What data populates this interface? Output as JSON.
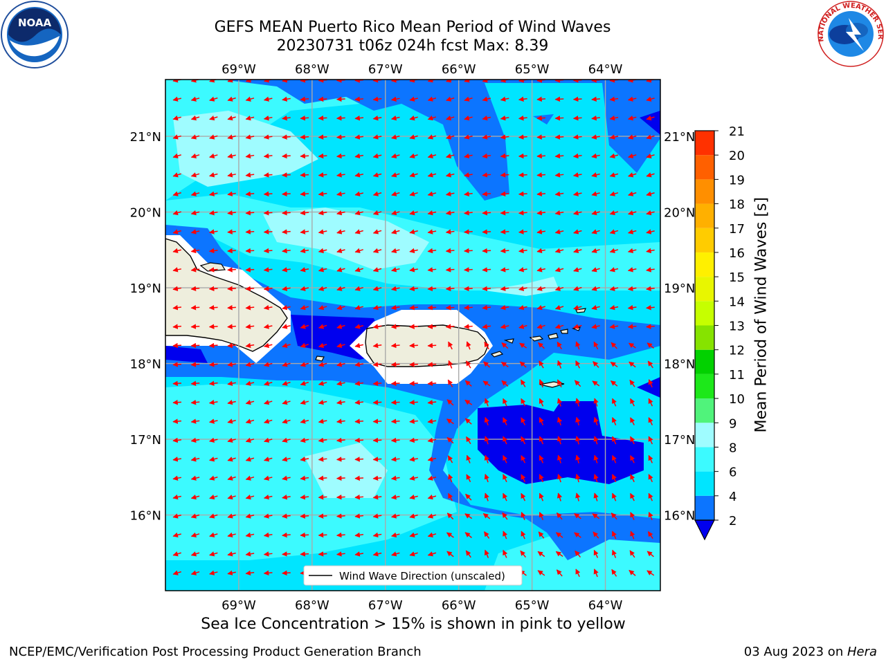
{
  "title": "GEFS MEAN Puerto Rico Mean Period of Wind Waves",
  "subtitle": "20230731 t06z 024h fcst   Max: 8.39",
  "map": {
    "lon_ticks": [
      "69°W",
      "68°W",
      "67°W",
      "66°W",
      "65°W",
      "64°W"
    ],
    "lat_ticks": [
      "21°N",
      "20°N",
      "19°N",
      "18°N",
      "17°N",
      "16°N"
    ],
    "legend_label": "Wind Wave Direction (unscaled)",
    "arrow_color": "#ff0000",
    "land_color": "#eeeedd",
    "extent": {
      "lon_min": -70.0,
      "lon_max": -63.25,
      "lat_min": 15.0,
      "lat_max": 21.75
    }
  },
  "colorbar": {
    "label": "Mean Period of Wind Waves [s]",
    "ticks": [
      "2",
      "4",
      "6",
      "8",
      "9",
      "10",
      "11",
      "12",
      "13",
      "14",
      "15",
      "16",
      "17",
      "18",
      "19",
      "20",
      "21"
    ],
    "colors": [
      "#0c75ff",
      "#00e5ff",
      "#3cfaff",
      "#9ffcff",
      "#50f37b",
      "#1de81a",
      "#02d100",
      "#86e300",
      "#c6ff00",
      "#e8f600",
      "#fff000",
      "#ffcc00",
      "#ffb000",
      "#ff8f00",
      "#ff6000",
      "#ff3100",
      "#fe0000"
    ],
    "under_color": "#0000ee"
  },
  "footer": {
    "note": "Sea Ice Concentration > 15% is shown in pink to yellow",
    "credit_left": "NCEP/EMC/Verification Post Processing Product Generation Branch",
    "credit_date": "03 Aug 2023 on ",
    "credit_host": "Hera"
  },
  "logos": {
    "noaa": "NOAA",
    "nws": "NATIONAL WEATHER SERVICE"
  }
}
